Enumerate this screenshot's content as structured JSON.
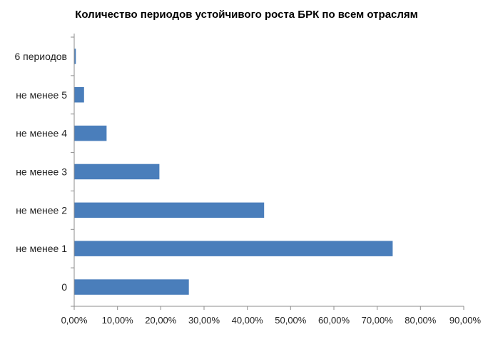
{
  "chart_data": {
    "type": "bar",
    "orientation": "horizontal",
    "title": "Количество периодов устойчивого роста БРК по всем отраслям",
    "xlabel": "",
    "ylabel": "",
    "categories": [
      "6 периодов",
      "не менее 5",
      "не менее 4",
      "не менее 3",
      "не менее 2",
      "не менее 1",
      "0"
    ],
    "values": [
      0.3,
      2.2,
      7.4,
      19.6,
      43.8,
      73.5,
      26.4
    ],
    "xlim": [
      0,
      90
    ],
    "x_ticks": [
      "0,00%",
      "10,00%",
      "20,00%",
      "30,00%",
      "40,00%",
      "50,00%",
      "60,00%",
      "70,00%",
      "80,00%",
      "90,00%"
    ],
    "unit": "%",
    "grid": false,
    "legend": "none",
    "bar_color": "#4a7ebb",
    "axis_color": "#8c8c8c"
  }
}
